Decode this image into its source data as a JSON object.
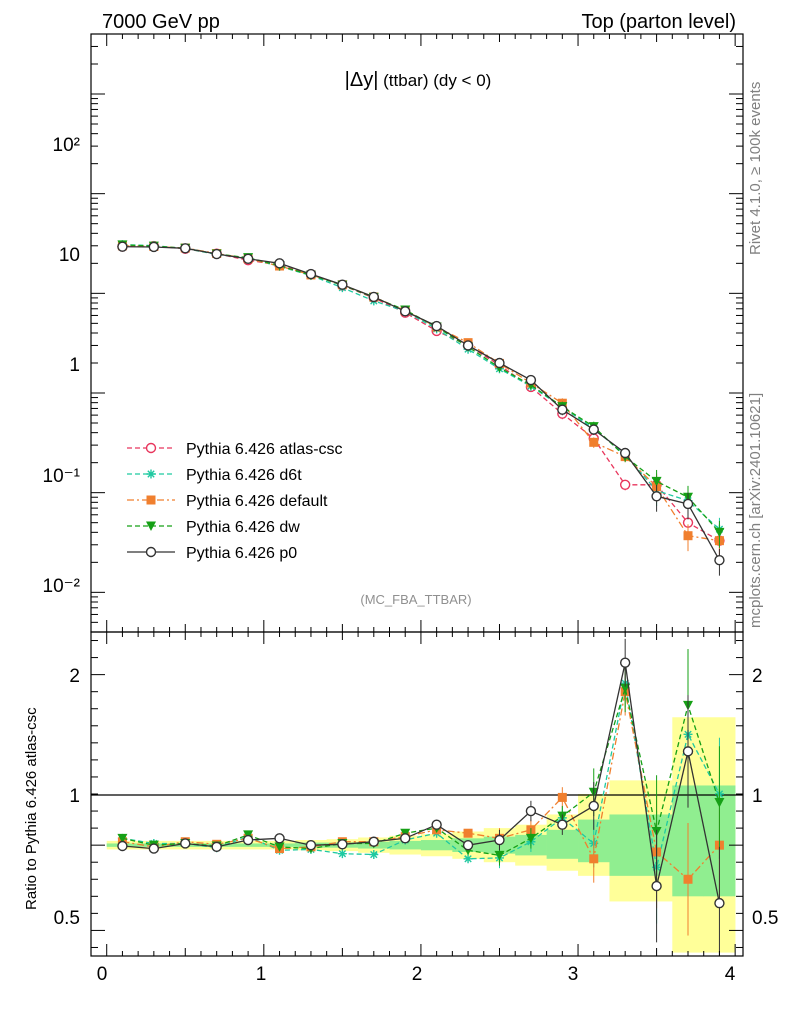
{
  "header": {
    "left": "7000 GeV pp",
    "right": "Top (parton level)"
  },
  "side_labels": {
    "rivet": "Rivet 4.1.0, ≥ 100k events",
    "mcplots": "mcplots.cern.ch [arXiv:2401.10621]"
  },
  "plot_title": {
    "main": "|Δy|",
    "sub": " (ttbar) (dy < 0)"
  },
  "analysis_ref": "(MC_FBA_TTBAR)",
  "ratio_ylabel": "Ratio to Pythia 6.426 atlas-csc",
  "chart_data": [
    {
      "type": "line",
      "title": "|Δy| (ttbar) (dy < 0)",
      "xlabel": "",
      "ylabel": "",
      "xlim": [
        -0.1,
        4.05
      ],
      "ylim": [
        0.004,
        4000
      ],
      "yscale": "log",
      "y_tick_labels": [
        "10⁻²",
        "10⁻¹",
        "1",
        "10",
        "10²"
      ],
      "x": [
        0.1,
        0.3,
        0.5,
        0.7,
        0.9,
        1.1,
        1.3,
        1.5,
        1.7,
        1.9,
        2.1,
        2.3,
        2.5,
        2.7,
        2.9,
        3.1,
        3.3,
        3.5,
        3.7,
        3.9
      ],
      "series": [
        {
          "name": "Pythia 6.426 atlas-csc",
          "color": "#e8365d",
          "marker": "open-circle",
          "dash": "5,3",
          "values": [
            29.5,
            29.8,
            28.0,
            25.0,
            21.5,
            19.2,
            15.5,
            12.0,
            9.0,
            6.4,
            4.2,
            3.0,
            1.9,
            1.15,
            0.62,
            0.35,
            0.12,
            0.12,
            0.05,
            0.033
          ]
        },
        {
          "name": "Pythia 6.426 d6t",
          "color": "#1fc9a1",
          "marker": "asterisk",
          "dash": "5,3",
          "values": [
            30.8,
            30.1,
            28.2,
            24.6,
            22.6,
            18.6,
            15.1,
            11.4,
            8.4,
            6.6,
            4.4,
            2.75,
            1.75,
            1.17,
            0.72,
            0.44,
            0.24,
            0.105,
            0.083,
            0.043
          ]
        },
        {
          "name": "Pythia 6.426 default",
          "color": "#f07f2e",
          "marker": "filled-square",
          "dash": "7,3,2,3",
          "values": [
            30.0,
            29.5,
            28.5,
            25.1,
            22.3,
            18.8,
            15.3,
            12.2,
            9.2,
            6.7,
            4.6,
            3.2,
            1.98,
            1.26,
            0.79,
            0.32,
            0.23,
            0.115,
            0.037,
            0.033
          ]
        },
        {
          "name": "Pythia 6.426 dw",
          "color": "#16a016",
          "marker": "filled-triangle-down",
          "dash": "5,3",
          "values": [
            30.6,
            29.8,
            28.3,
            24.8,
            22.8,
            19.0,
            15.2,
            12.1,
            9.1,
            6.8,
            4.6,
            2.9,
            1.8,
            1.2,
            0.73,
            0.46,
            0.23,
            0.13,
            0.09,
            0.04
          ]
        },
        {
          "name": "Pythia 6.426 p0",
          "color": "#333333",
          "marker": "open-circle",
          "dash": "",
          "values": [
            29.4,
            29.2,
            28.3,
            24.8,
            22.2,
            20.0,
            15.6,
            12.2,
            9.2,
            6.6,
            4.7,
            3.0,
            2.0,
            1.35,
            0.68,
            0.43,
            0.25,
            0.092,
            0.077,
            0.021
          ]
        }
      ],
      "legend": "lower-left"
    },
    {
      "type": "line",
      "title": "",
      "xlabel": "",
      "ylabel": "Ratio to Pythia 6.426 atlas-csc",
      "xlim": [
        -0.1,
        4.05
      ],
      "ylim": [
        0.35,
        2.25
      ],
      "x_tick_labels": [
        "0",
        "1",
        "2",
        "3",
        "4"
      ],
      "y_tick_labels": [
        "0.5",
        "1",
        "2"
      ],
      "x": [
        0.1,
        0.3,
        0.5,
        0.7,
        0.9,
        1.1,
        1.3,
        1.5,
        1.7,
        1.9,
        2.1,
        2.3,
        2.5,
        2.7,
        2.9,
        3.1,
        3.3,
        3.5,
        3.7,
        3.9
      ],
      "bin_edges": [
        0.0,
        0.2,
        0.4,
        0.6,
        0.8,
        1.0,
        1.2,
        1.4,
        1.6,
        1.8,
        2.0,
        2.2,
        2.4,
        2.6,
        2.8,
        3.0,
        3.2,
        3.4,
        3.6,
        3.8,
        4.0
      ],
      "band_yellow": [
        [
          0.975,
          1.025
        ],
        [
          0.975,
          1.025
        ],
        [
          0.975,
          1.025
        ],
        [
          0.975,
          1.025
        ],
        [
          0.975,
          1.025
        ],
        [
          0.975,
          1.025
        ],
        [
          0.97,
          1.03
        ],
        [
          0.965,
          1.035
        ],
        [
          0.955,
          1.045
        ],
        [
          0.945,
          1.055
        ],
        [
          0.935,
          1.065
        ],
        [
          0.92,
          1.08
        ],
        [
          0.9,
          1.1
        ],
        [
          0.88,
          1.12
        ],
        [
          0.85,
          1.18
        ],
        [
          0.82,
          1.3
        ],
        [
          0.67,
          1.38
        ],
        [
          0.67,
          1.38
        ],
        [
          0.37,
          1.75
        ],
        [
          0.37,
          1.75
        ]
      ],
      "band_green": [
        [
          0.99,
          1.01
        ],
        [
          0.99,
          1.01
        ],
        [
          0.99,
          1.01
        ],
        [
          0.99,
          1.01
        ],
        [
          0.99,
          1.01
        ],
        [
          0.99,
          1.01
        ],
        [
          0.985,
          1.015
        ],
        [
          0.985,
          1.015
        ],
        [
          0.98,
          1.02
        ],
        [
          0.975,
          1.025
        ],
        [
          0.97,
          1.03
        ],
        [
          0.96,
          1.04
        ],
        [
          0.95,
          1.05
        ],
        [
          0.94,
          1.06
        ],
        [
          0.92,
          1.09
        ],
        [
          0.9,
          1.15
        ],
        [
          0.82,
          1.18
        ],
        [
          0.82,
          1.18
        ],
        [
          0.7,
          1.35
        ],
        [
          0.7,
          1.35
        ]
      ],
      "series": [
        {
          "name": "Pythia 6.426 d6t",
          "color": "#1fc9a1",
          "marker": "asterisk",
          "dash": "5,3",
          "values": [
            1.04,
            1.01,
            1.01,
            0.985,
            1.05,
            0.97,
            0.975,
            0.95,
            0.945,
            1.03,
            1.07,
            0.92,
            0.925,
            1.02,
            1.16,
            1.01,
            1.95,
            0.87,
            1.65,
            1.3
          ]
        },
        {
          "name": "Pythia 6.426 default",
          "color": "#f07f2e",
          "marker": "filled-square",
          "dash": "7,3,2,3",
          "values": [
            1.02,
            0.99,
            1.02,
            1.005,
            1.04,
            0.98,
            0.99,
            1.02,
            1.02,
            1.05,
            1.09,
            1.07,
            1.04,
            1.09,
            1.28,
            0.92,
            1.9,
            0.96,
            0.8,
            1.0
          ]
        },
        {
          "name": "Pythia 6.426 dw",
          "color": "#16a016",
          "marker": "filled-triangle-down",
          "dash": "5,3",
          "values": [
            1.04,
            1.0,
            1.01,
            0.995,
            1.06,
            0.99,
            0.98,
            1.01,
            1.01,
            1.07,
            1.1,
            0.97,
            0.94,
            1.04,
            1.17,
            1.31,
            1.92,
            1.08,
            1.82,
            1.25
          ]
        },
        {
          "name": "Pythia 6.426 p0",
          "color": "#333333",
          "marker": "open-circle",
          "dash": "",
          "values": [
            0.995,
            0.98,
            1.01,
            0.99,
            1.03,
            1.04,
            1.0,
            1.005,
            1.02,
            1.04,
            1.12,
            1.0,
            1.03,
            1.2,
            1.12,
            1.23,
            2.07,
            0.76,
            1.55,
            0.66
          ]
        }
      ]
    }
  ]
}
